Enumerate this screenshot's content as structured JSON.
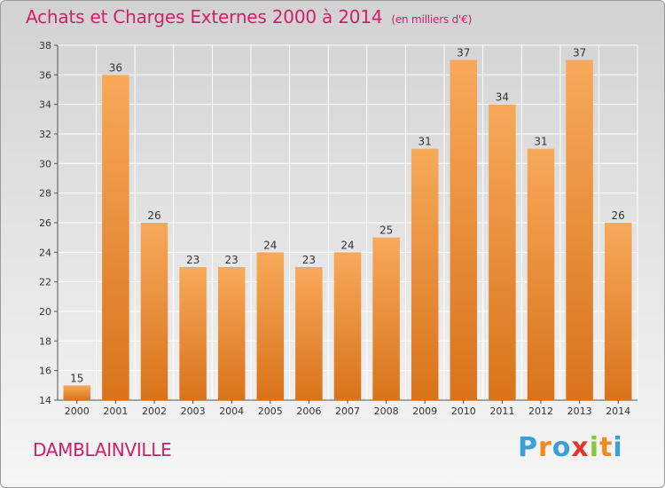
{
  "header": {
    "title": "Achats et Charges Externes 2000 à 2014",
    "subtitle": "(en milliers d'€)"
  },
  "footer": {
    "commune": "DAMBLAINVILLE",
    "logo_letters": [
      "P",
      "r",
      "o",
      "x",
      "i",
      "t",
      "i"
    ],
    "logo_colors": [
      "#3b9fd8",
      "#f08a1c",
      "#3b9fd8",
      "#e2372a",
      "#8cc23c",
      "#f08a1c",
      "#3b9fd8"
    ]
  },
  "chart_data": {
    "type": "bar",
    "categories": [
      "2000",
      "2001",
      "2002",
      "2003",
      "2004",
      "2005",
      "2006",
      "2007",
      "2008",
      "2009",
      "2010",
      "2011",
      "2012",
      "2013",
      "2014"
    ],
    "values": [
      15,
      36,
      26,
      23,
      23,
      24,
      23,
      24,
      25,
      31,
      37,
      34,
      31,
      37,
      26
    ],
    "ylim": [
      14,
      38
    ],
    "yticks": [
      14,
      16,
      18,
      20,
      22,
      24,
      26,
      28,
      30,
      32,
      34,
      36,
      38
    ],
    "grid": true,
    "bar_color_top": "#f7a95a",
    "bar_color_bottom": "#d9731a",
    "xlabel": "",
    "ylabel": ""
  }
}
